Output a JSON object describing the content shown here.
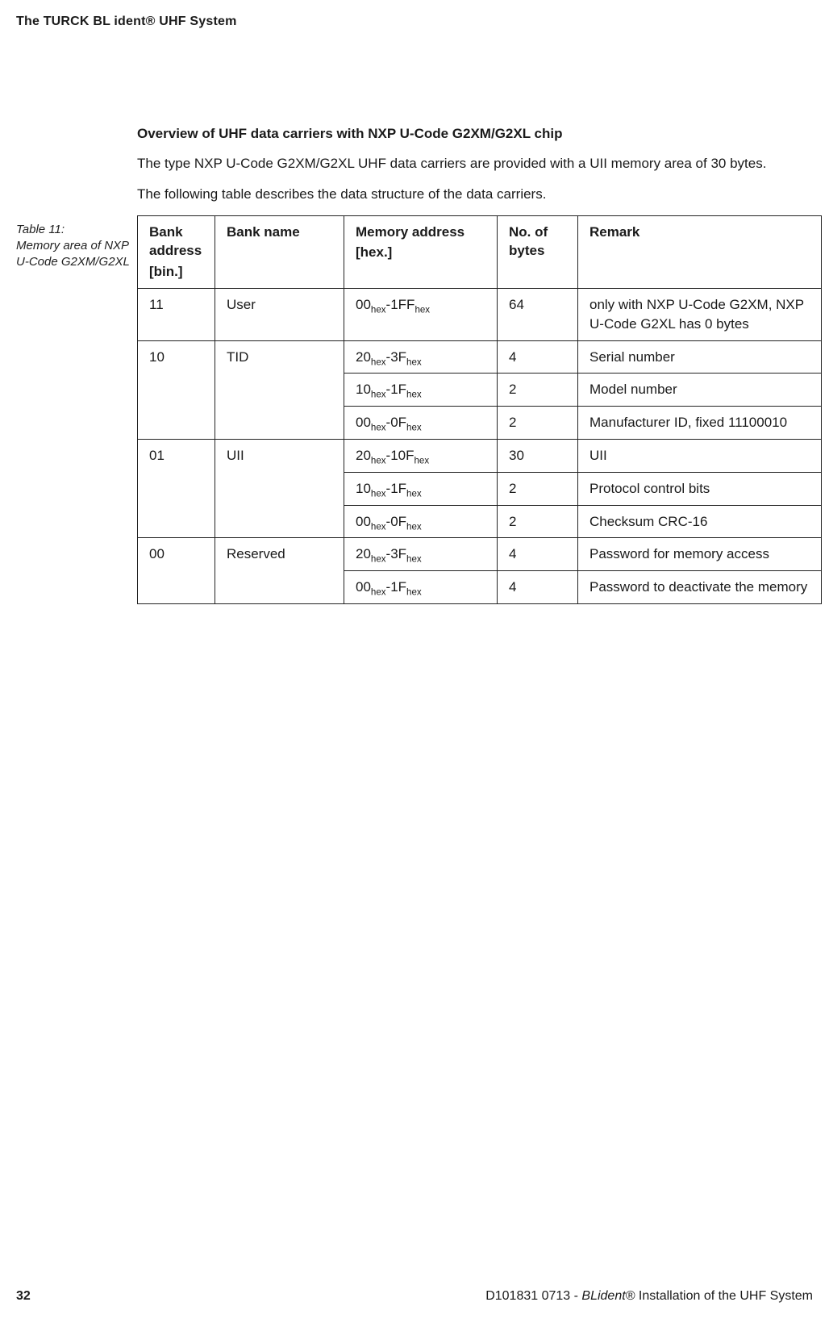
{
  "running_head": "The TURCK BL ident® UHF System",
  "section_title": "Overview of UHF data carriers with NXP U-Code G2XM/G2XL chip",
  "para1": "The type NXP U-Code G2XM/G2XL UHF data carriers are provided with a UII memory area of 30 bytes.",
  "para2": "The following table describes the data structure of the data carriers.",
  "caption": {
    "label": "Table 11:",
    "text": "Memory area of NXP U-Code G2XM/G2XL"
  },
  "headers": {
    "c1a": "Bank address",
    "c1b": "[bin.]",
    "c2": "Bank name",
    "c3a": "Memory address",
    "c3b": "[hex.]",
    "c4": "No. of bytes",
    "c5": "Remark"
  },
  "rows": [
    {
      "bank_addr": "11",
      "bank_name": "User",
      "mem": [
        [
          "00",
          "hex"
        ],
        "-",
        [
          "1FF",
          "hex"
        ]
      ],
      "bytes": "64",
      "remark": "only with NXP U-Code G2XM, NXP U-Code G2XL has 0 bytes",
      "rowspan": 1
    },
    {
      "bank_addr": "10",
      "bank_name": "TID",
      "mem": [
        [
          "20",
          "hex"
        ],
        "-",
        [
          "3F",
          "hex"
        ]
      ],
      "bytes": "4",
      "remark": "Serial number",
      "rowspan": 3
    },
    {
      "mem": [
        [
          "10",
          "hex"
        ],
        "-",
        [
          "1F",
          "hex"
        ]
      ],
      "bytes": "2",
      "remark": "Model number"
    },
    {
      "mem": [
        [
          "00",
          "hex"
        ],
        "-",
        [
          "0F",
          "hex"
        ]
      ],
      "bytes": "2",
      "remark": "Manufacturer ID, fixed 11100010"
    },
    {
      "bank_addr": "01",
      "bank_name": "UII",
      "mem": [
        [
          "20",
          "hex"
        ],
        "-",
        [
          "10F",
          "hex"
        ]
      ],
      "bytes": "30",
      "remark": "UII",
      "rowspan": 3
    },
    {
      "mem": [
        [
          "10",
          "hex"
        ],
        "-",
        [
          "1F",
          "hex"
        ]
      ],
      "bytes": "2",
      "remark": "Protocol control bits"
    },
    {
      "mem": [
        [
          "00",
          "hex"
        ],
        "-",
        [
          "0F",
          "hex"
        ]
      ],
      "bytes": "2",
      "remark": "Checksum CRC-16"
    },
    {
      "bank_addr": "00",
      "bank_name": "Reserved",
      "mem": [
        [
          "20",
          "hex"
        ],
        "-",
        [
          "3F",
          "hex"
        ]
      ],
      "bytes": "4",
      "remark": "Password for memory access",
      "rowspan": 2
    },
    {
      "mem": [
        [
          "00",
          "hex"
        ],
        "-",
        [
          "1F",
          "hex"
        ]
      ],
      "bytes": "4",
      "remark": "Password to deactivate the memory"
    }
  ],
  "footer": {
    "page": "32",
    "docid": "D101831 0713 -  ",
    "title_ital": "BLident®",
    "title_rest": " Installation  of the UHF System"
  }
}
